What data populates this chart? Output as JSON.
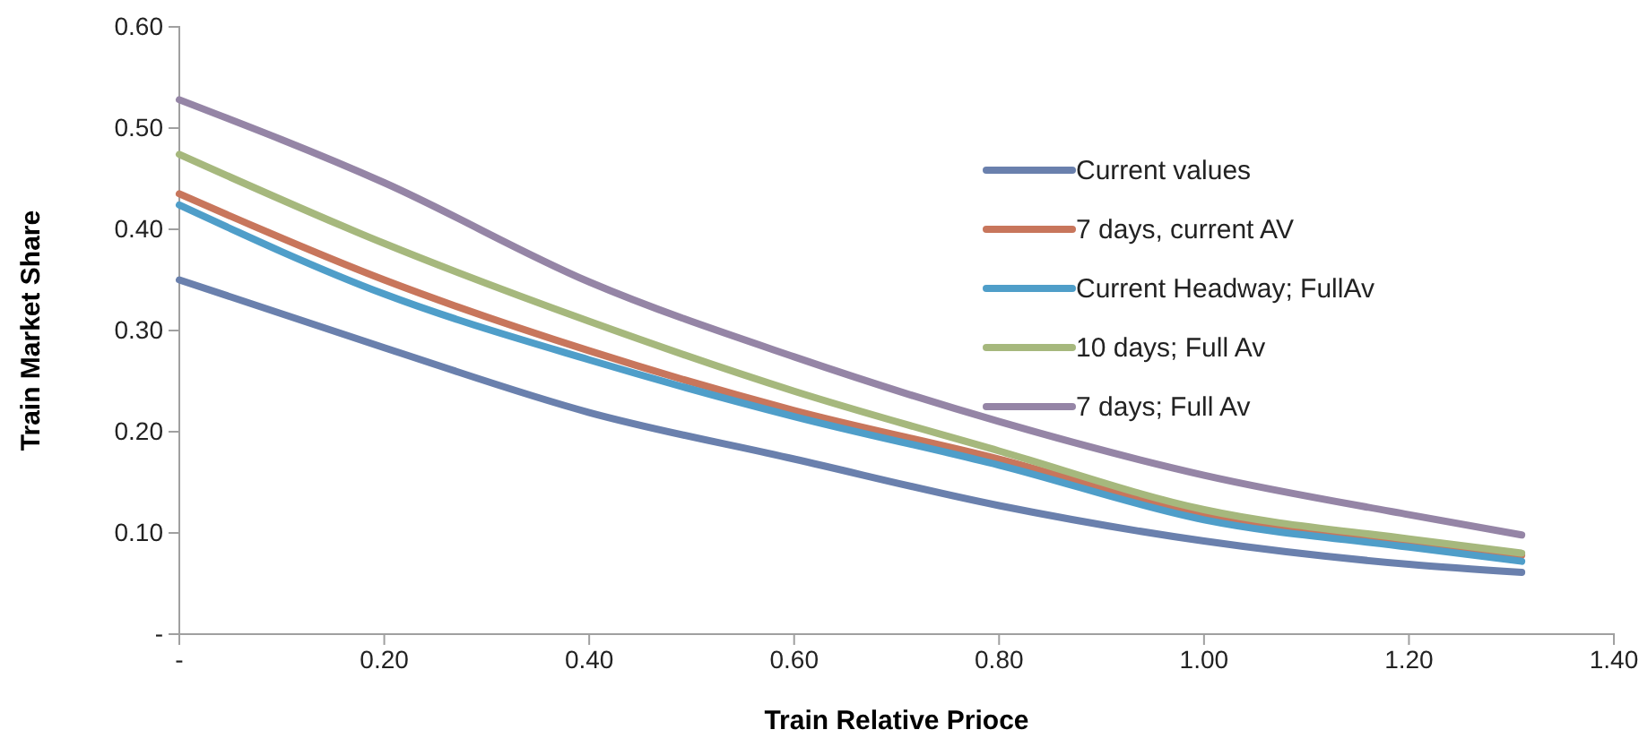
{
  "chart_data": {
    "type": "line",
    "xlabel": "Train Relative Prioce",
    "ylabel": "Train Market Share",
    "x": [
      0,
      0.2,
      0.4,
      0.6,
      0.8,
      1.0,
      1.2,
      1.31
    ],
    "series": [
      {
        "name": "Current values",
        "color": "#6a80ad",
        "values": [
          0.35,
          0.283,
          0.219,
          0.173,
          0.127,
          0.092,
          0.069,
          0.061
        ]
      },
      {
        "name": "7 days, current AV",
        "color": "#c8765c",
        "values": [
          0.435,
          0.35,
          0.28,
          0.221,
          0.173,
          0.118,
          0.09,
          0.078
        ]
      },
      {
        "name": "Current Headway; FullAv",
        "color": "#4f9ec9",
        "values": [
          0.424,
          0.336,
          0.271,
          0.215,
          0.167,
          0.113,
          0.086,
          0.072
        ]
      },
      {
        "name": "10 days; Full Av",
        "color": "#a6b87d",
        "values": [
          0.474,
          0.386,
          0.309,
          0.24,
          0.181,
          0.123,
          0.094,
          0.08
        ]
      },
      {
        "name": "7 days; Full Av",
        "color": "#9585a6",
        "values": [
          0.528,
          0.446,
          0.348,
          0.274,
          0.21,
          0.157,
          0.118,
          0.098
        ]
      }
    ],
    "xlim": [
      0,
      1.4
    ],
    "xticks": [
      {
        "value": 0,
        "label": "-"
      },
      {
        "value": 0.2,
        "label": "0.20"
      },
      {
        "value": 0.4,
        "label": "0.40"
      },
      {
        "value": 0.6,
        "label": "0.60"
      },
      {
        "value": 0.8,
        "label": "0.80"
      },
      {
        "value": 1.0,
        "label": "1.00"
      },
      {
        "value": 1.2,
        "label": "1.20"
      },
      {
        "value": 1.4,
        "label": "1.40"
      }
    ],
    "ylim": [
      0,
      0.6
    ],
    "yticks": [
      {
        "value": 0,
        "label": "-"
      },
      {
        "value": 0.1,
        "label": "0.10"
      },
      {
        "value": 0.2,
        "label": "0.20"
      },
      {
        "value": 0.3,
        "label": "0.30"
      },
      {
        "value": 0.4,
        "label": "0.40"
      },
      {
        "value": 0.5,
        "label": "0.50"
      },
      {
        "value": 0.6,
        "label": "0.60"
      }
    ],
    "grid": false,
    "legend": "top right",
    "marker": "none",
    "line_style": "solid"
  }
}
